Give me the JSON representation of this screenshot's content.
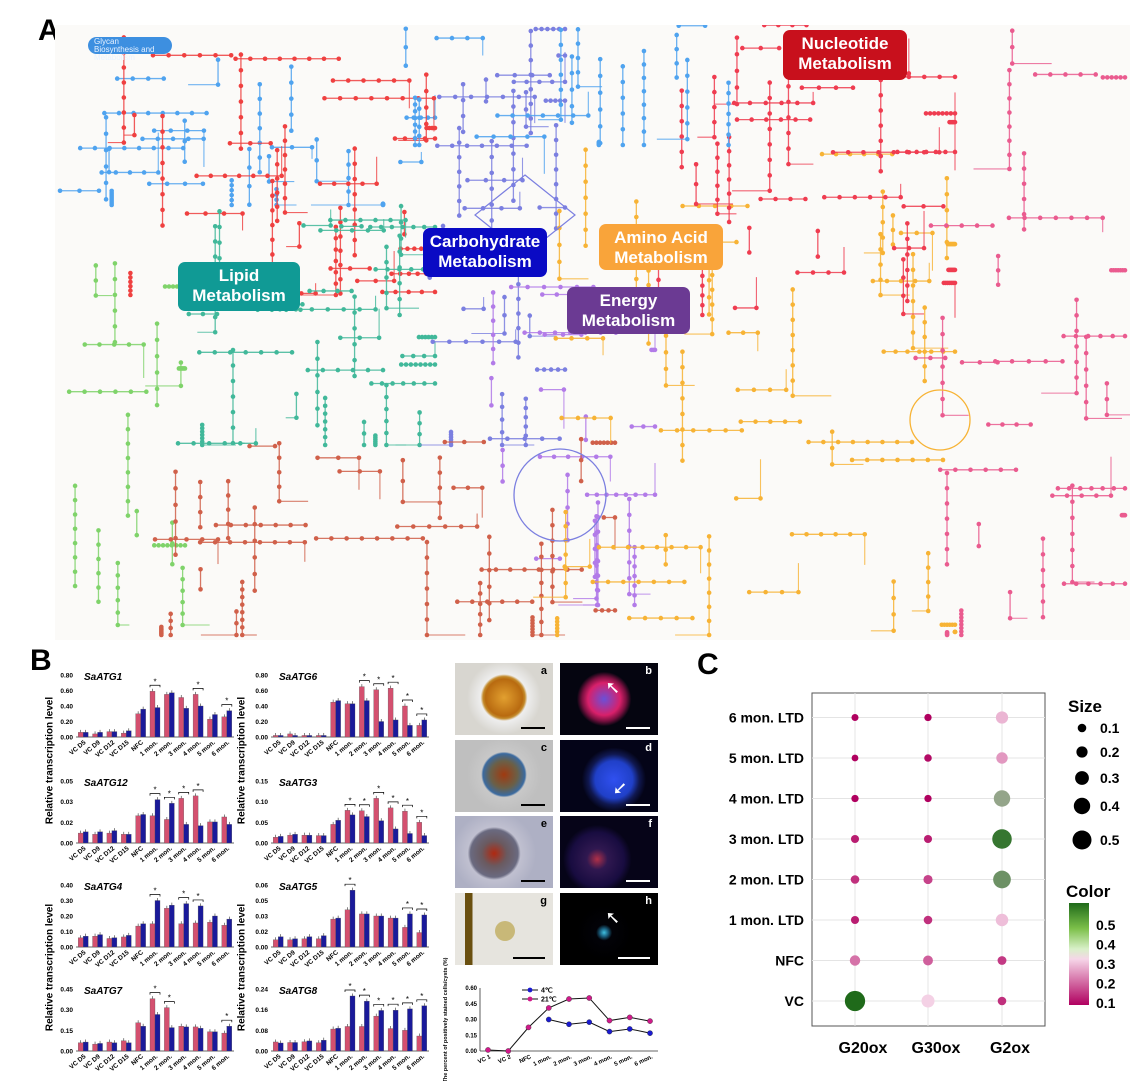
{
  "panels": {
    "a": "A",
    "b": "B",
    "c": "C"
  },
  "map": {
    "labels": {
      "glycan": "Glycan Biosynthesis and Metabolism",
      "nucleotide": "Nucleotide Metabolism",
      "carbohydrate": "Carbohydrate Metabolism",
      "amino_acid": "Amino Acid Metabolism",
      "lipid": "Lipid Metabolism",
      "energy": "Energy Metabolism"
    },
    "pathway_colors": {
      "glycan": "#4fa3ef",
      "glycan_overlay": "#ef4040",
      "lipid": "#41b89a",
      "lipid_light": "#7fd36a",
      "carbohydrate": "#7b7fe0",
      "energy": "#b27be8",
      "amino_acid": "#f7b335",
      "nucleotide": "#ef3c50",
      "other_aa": "#ea5b8f",
      "xenobiotics": "#d0604a"
    },
    "label_colors": {
      "nucleotide": "#c8101c",
      "carbohydrate": "#0a0ac4",
      "amino_acid": "#f9a43a",
      "lipid": "#109a95",
      "energy": "#6b3a93",
      "glycan": "#3d8fe0"
    }
  },
  "bar_colors": {
    "series_a": "#d4506f",
    "series_b": "#1a1a9a"
  },
  "ylabel_bars": "Relative transcription level",
  "micrographs": [
    "a",
    "b",
    "c",
    "d",
    "e",
    "f",
    "g",
    "h"
  ],
  "chart_data": [
    {
      "type": "bar",
      "title": "SaATG1",
      "ylim": [
        0,
        0.8
      ],
      "yticks": [
        "0.00",
        "0.20",
        "0.40",
        "0.60",
        "0.80"
      ],
      "categories": [
        "VC D5",
        "VC D9",
        "VC D12",
        "VC D15",
        "NFC",
        "1 mon.",
        "2 mon.",
        "3 mon.",
        "4 mon.",
        "5 mon.",
        "6 mon."
      ],
      "series": [
        {
          "values": [
            0.06,
            0.04,
            0.07,
            0.05,
            0.3,
            0.59,
            0.55,
            0.51,
            0.55,
            0.23,
            0.26
          ]
        },
        {
          "values": [
            0.06,
            0.06,
            0.07,
            0.08,
            0.36,
            0.38,
            0.57,
            0.37,
            0.4,
            0.29,
            0.34
          ]
        }
      ],
      "significant": [
        "1 mon.",
        "4 mon.",
        "6 mon."
      ],
      "marker": "*"
    },
    {
      "type": "bar",
      "title": "SaATG6",
      "ylim": [
        0,
        0.8
      ],
      "yticks": [
        "0.00",
        "0.20",
        "0.40",
        "0.60",
        "0.80"
      ],
      "categories": [
        "VC D5",
        "VC D9",
        "VC D12",
        "VC D15",
        "NFC",
        "1 mon.",
        "2 mon.",
        "3 mon.",
        "4 mon.",
        "5 mon.",
        "6 mon."
      ],
      "series": [
        {
          "values": [
            0.02,
            0.04,
            0.02,
            0.02,
            0.45,
            0.43,
            0.65,
            0.61,
            0.63,
            0.4,
            0.15
          ]
        },
        {
          "values": [
            0.02,
            0.02,
            0.02,
            0.02,
            0.47,
            0.43,
            0.47,
            0.2,
            0.22,
            0.15,
            0.22
          ]
        }
      ],
      "significant": [
        "2 mon.",
        "3 mon.",
        "4 mon.",
        "5 mon.",
        "6 mon."
      ],
      "marker": "*"
    },
    {
      "type": "bar",
      "title": "SaATG12",
      "ylim": [
        0,
        0.05
      ],
      "yticks": [
        "0.00",
        "0.02",
        "0.03",
        "0.05"
      ],
      "categories": [
        "VC D5",
        "VC D9",
        "VC D12",
        "VC D15",
        "NFC",
        "1 mon.",
        "2 mon.",
        "3 mon.",
        "4 mon.",
        "5 mon.",
        "6 mon."
      ],
      "series": [
        {
          "values": [
            0.008,
            0.007,
            0.008,
            0.007,
            0.022,
            0.022,
            0.019,
            0.036,
            0.038,
            0.017,
            0.021
          ]
        },
        {
          "values": [
            0.009,
            0.009,
            0.01,
            0.007,
            0.023,
            0.035,
            0.032,
            0.015,
            0.014,
            0.017,
            0.015
          ]
        }
      ],
      "significant": [
        "1 mon.",
        "2 mon.",
        "3 mon.",
        "4 mon."
      ],
      "marker": "*"
    },
    {
      "type": "bar",
      "title": "SaATG3",
      "ylim": [
        0,
        0.15
      ],
      "yticks": [
        "0.00",
        "0.05",
        "0.10",
        "0.15"
      ],
      "categories": [
        "VC D5",
        "VC D9",
        "VC D12",
        "VC D15",
        "NFC",
        "1 mon.",
        "2 mon.",
        "3 mon.",
        "4 mon.",
        "5 mon.",
        "6 mon."
      ],
      "series": [
        {
          "values": [
            0.014,
            0.019,
            0.019,
            0.018,
            0.045,
            0.079,
            0.078,
            0.108,
            0.085,
            0.077,
            0.05
          ]
        },
        {
          "values": [
            0.016,
            0.021,
            0.019,
            0.018,
            0.055,
            0.068,
            0.064,
            0.054,
            0.034,
            0.023,
            0.018
          ]
        }
      ],
      "significant": [
        "1 mon.",
        "2 mon.",
        "3 mon.",
        "4 mon.",
        "5 mon.",
        "6 mon."
      ],
      "marker": "*"
    },
    {
      "type": "bar",
      "title": "SaATG4",
      "ylim": [
        0,
        0.4
      ],
      "yticks": [
        "0.00",
        "0.10",
        "0.20",
        "0.30",
        "0.40"
      ],
      "categories": [
        "VC D5",
        "VC D9",
        "VC D12",
        "VC D15",
        "NFC",
        "1 mon.",
        "2 mon.",
        "3 mon.",
        "4 mon.",
        "5 mon.",
        "6 mon."
      ],
      "series": [
        {
          "values": [
            0.06,
            0.07,
            0.055,
            0.065,
            0.135,
            0.15,
            0.25,
            0.15,
            0.155,
            0.16,
            0.14
          ]
        },
        {
          "values": [
            0.07,
            0.08,
            0.06,
            0.075,
            0.15,
            0.3,
            0.27,
            0.28,
            0.265,
            0.2,
            0.18
          ]
        }
      ],
      "significant": [
        "1 mon.",
        "3 mon.",
        "4 mon."
      ],
      "marker": "*"
    },
    {
      "type": "bar",
      "title": "SaATG5",
      "ylim": [
        0,
        0.06
      ],
      "yticks": [
        "0.00",
        "0.02",
        "0.03",
        "0.05",
        "0.06"
      ],
      "categories": [
        "VC D5",
        "VC D9",
        "VC D12",
        "VC D15",
        "NFC",
        "1 mon.",
        "2 mon.",
        "3 mon.",
        "4 mon.",
        "5 mon.",
        "6 mon."
      ],
      "series": [
        {
          "values": [
            0.007,
            0.007,
            0.008,
            0.008,
            0.027,
            0.036,
            0.032,
            0.03,
            0.028,
            0.019,
            0.014
          ]
        },
        {
          "values": [
            0.01,
            0.008,
            0.01,
            0.011,
            0.028,
            0.055,
            0.032,
            0.03,
            0.028,
            0.032,
            0.031
          ]
        }
      ],
      "significant": [
        "1 mon.",
        "5 mon.",
        "6 mon."
      ],
      "marker": "*"
    },
    {
      "type": "bar",
      "title": "SaATG7",
      "ylim": [
        0,
        0.45
      ],
      "yticks": [
        "0.00",
        "0.15",
        "0.30",
        "0.45"
      ],
      "categories": [
        "VC D5",
        "VC D9",
        "VC D12",
        "VC D15",
        "NFC",
        "1 mon.",
        "2 mon.",
        "3 mon.",
        "4 mon.",
        "5 mon.",
        "6 mon."
      ],
      "series": [
        {
          "values": [
            0.06,
            0.05,
            0.065,
            0.075,
            0.205,
            0.38,
            0.315,
            0.18,
            0.175,
            0.14,
            0.13
          ]
        },
        {
          "values": [
            0.065,
            0.055,
            0.06,
            0.06,
            0.18,
            0.265,
            0.17,
            0.175,
            0.165,
            0.14,
            0.18
          ]
        }
      ],
      "significant": [
        "1 mon.",
        "2 mon.",
        "6 mon."
      ],
      "marker": "*"
    },
    {
      "type": "bar",
      "title": "SaATG8",
      "ylim": [
        0,
        0.24
      ],
      "yticks": [
        "0.00",
        "0.08",
        "0.16",
        "0.24"
      ],
      "categories": [
        "VC D5",
        "VC D9",
        "VC D12",
        "VC D15",
        "NFC",
        "1 mon.",
        "2 mon.",
        "3 mon.",
        "4 mon.",
        "5 mon.",
        "6 mon."
      ],
      "series": [
        {
          "values": [
            0.035,
            0.033,
            0.036,
            0.032,
            0.085,
            0.095,
            0.095,
            0.135,
            0.087,
            0.08,
            0.058
          ]
        },
        {
          "values": [
            0.031,
            0.033,
            0.039,
            0.042,
            0.088,
            0.213,
            0.193,
            0.157,
            0.158,
            0.163,
            0.175
          ]
        }
      ],
      "significant": [
        "1 mon.",
        "2 mon.",
        "3 mon.",
        "4 mon.",
        "5 mon.",
        "6 mon."
      ],
      "marker": "*"
    },
    {
      "type": "line",
      "ylabel": "The percent of positively stained cells/cysts (%)",
      "ylim": [
        0,
        0.6
      ],
      "yticks": [
        "0.00",
        "0.15",
        "0.30",
        "0.45",
        "0.60"
      ],
      "categories": [
        "VC 1",
        "VC 2",
        "NFC",
        "1 mon.",
        "2 mon.",
        "3 mon.",
        "4 mon.",
        "5 mon.",
        "6 mon."
      ],
      "series": [
        {
          "name": "4℃",
          "color": "#1a1ad0",
          "values": [
            null,
            null,
            null,
            0.3,
            0.255,
            0.275,
            0.185,
            0.21,
            0.17
          ]
        },
        {
          "name": "21℃",
          "color": "#d01a8a",
          "values": [
            0.01,
            0.0,
            0.225,
            0.41,
            0.495,
            0.505,
            0.29,
            0.32,
            0.285
          ]
        }
      ],
      "legend": "top-left"
    },
    {
      "type": "scatter",
      "subtype": "dot-plot",
      "x_categories": [
        "G20ox",
        "G30ox",
        "G2ox"
      ],
      "y_categories": [
        "VC",
        "NFC",
        "1 mon. LTD",
        "2 mon. LTD",
        "3 mon. LTD",
        "4 mon. LTD",
        "5 mon. LTD",
        "6 mon. LTD"
      ],
      "values": {
        "G20ox": [
          0.55,
          0.17,
          0.08,
          0.1,
          0.08,
          0.05,
          0.03,
          0.04
        ],
        "G30ox": [
          0.27,
          0.15,
          0.1,
          0.12,
          0.08,
          0.05,
          0.06,
          0.05
        ],
        "G2ox": [
          0.1,
          0.11,
          0.25,
          0.45,
          0.52,
          0.4,
          0.21,
          0.24
        ]
      },
      "size_legend": {
        "title": "Size",
        "values": [
          "0.1",
          "0.2",
          "0.3",
          "0.4",
          "0.5"
        ]
      },
      "color_legend": {
        "title": "Color",
        "ticks": [
          "0.5",
          "0.4",
          "0.3",
          "0.2",
          "0.1"
        ],
        "low": "#b0005f",
        "mid": "#f6d6e8",
        "high": "#1f6a1a"
      },
      "grid": true
    }
  ]
}
